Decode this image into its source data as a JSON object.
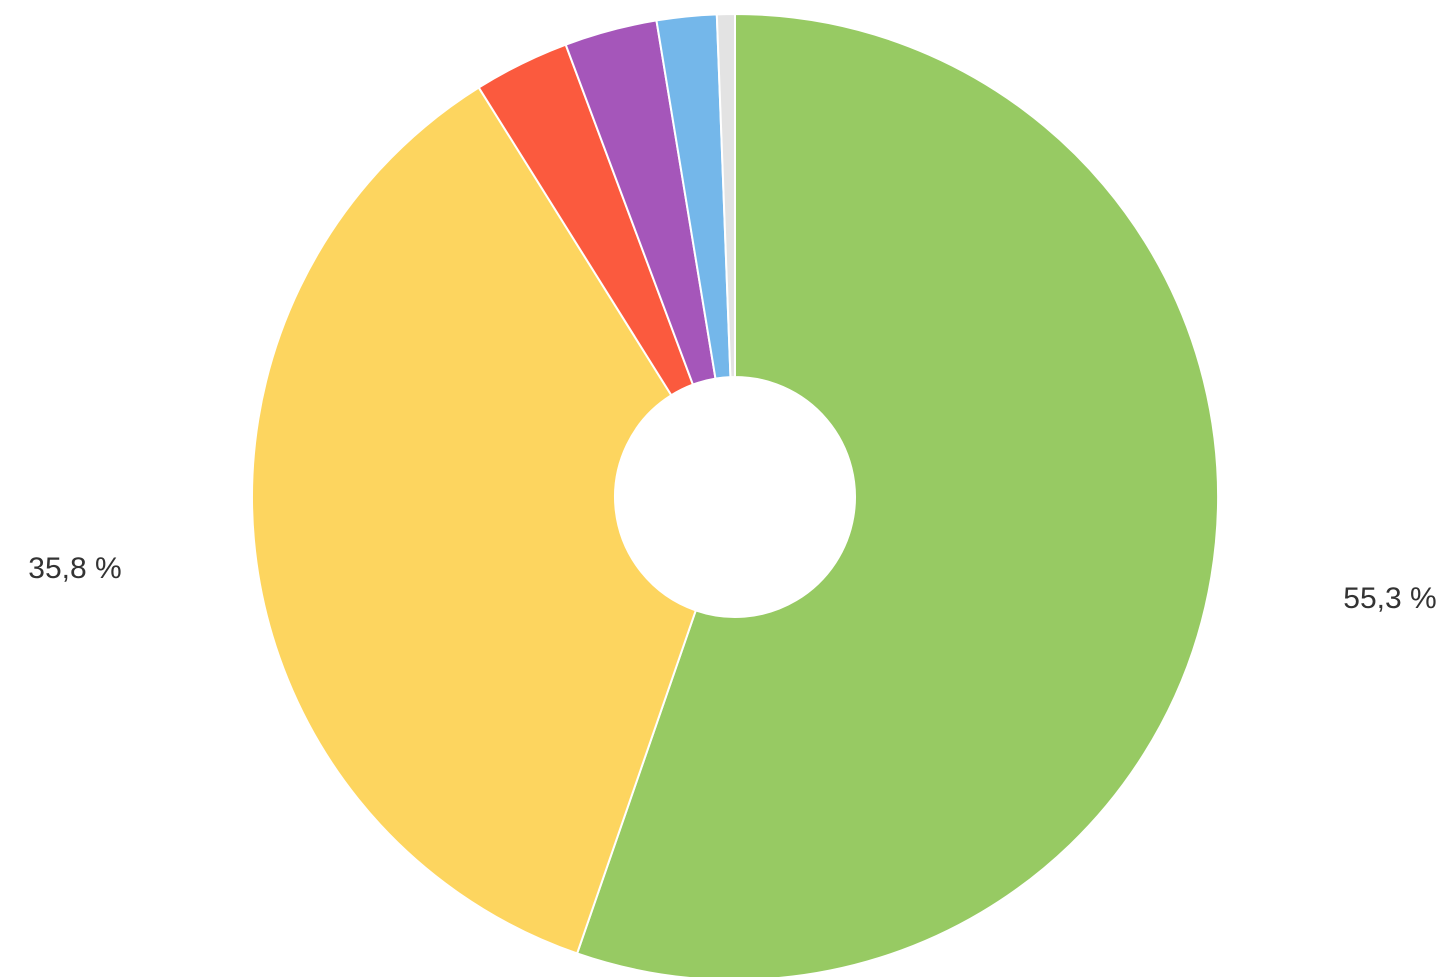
{
  "chart_data": {
    "type": "pie",
    "variant": "donut",
    "title": "",
    "legend": "none",
    "slices": [
      {
        "value": 55.3,
        "color": "#97ca63",
        "label": "55,3 %"
      },
      {
        "value": 35.8,
        "color": "#fdd55f",
        "label": "35,8 %"
      },
      {
        "value": 3.2,
        "color": "#fb5a3e",
        "label": ""
      },
      {
        "value": 3.1,
        "color": "#a556ba",
        "label": ""
      },
      {
        "value": 2.0,
        "color": "#74b7ea",
        "label": ""
      },
      {
        "value": 0.6,
        "color": "#e3e3e3",
        "label": ""
      }
    ]
  }
}
